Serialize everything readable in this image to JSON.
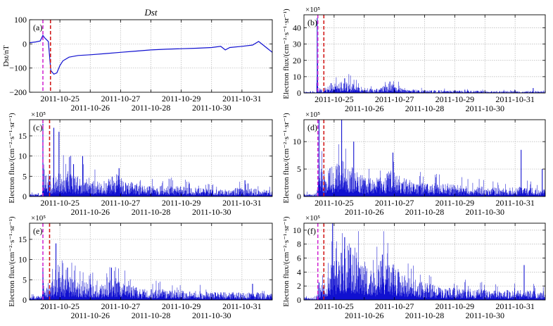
{
  "colors": {
    "series": "#1010d0",
    "marker_magenta": "#d22bd2",
    "marker_red": "#d21a1a",
    "grid": "#b5b5b5",
    "axis": "#000000"
  },
  "chart_data": [
    {
      "id": "a",
      "type": "line",
      "title": "Dst",
      "panel_label": "(a)",
      "xlabel": "",
      "ylabel": "Dst/nT",
      "multiplier": "",
      "xlim": [
        0,
        8
      ],
      "ylim": [
        -200,
        100
      ],
      "yticks": [
        100,
        0,
        -100,
        -200
      ],
      "ytick_labels": [
        "100",
        "0",
        "−100",
        "−200"
      ],
      "grid": true,
      "x_ticks": [
        {
          "x": 1,
          "label": "2011-10-25",
          "row": 0
        },
        {
          "x": 2,
          "label": "2011-10-26",
          "row": 1
        },
        {
          "x": 3,
          "label": "2011-10-27",
          "row": 0
        },
        {
          "x": 4,
          "label": "2011-10-28",
          "row": 1
        },
        {
          "x": 5,
          "label": "2011-10-29",
          "row": 0
        },
        {
          "x": 6,
          "label": "2011-10-30",
          "row": 1
        },
        {
          "x": 7,
          "label": "2011-10-31",
          "row": 0
        }
      ],
      "marker_lines": [
        {
          "x": 0.44,
          "color": "magenta",
          "style": "dashed"
        },
        {
          "x": 0.69,
          "color": "red",
          "style": "dashed"
        }
      ],
      "series": [
        {
          "name": "Dst",
          "x": [
            0,
            0.2,
            0.35,
            0.44,
            0.5,
            0.62,
            0.7,
            0.8,
            0.9,
            1.0,
            1.1,
            1.3,
            1.6,
            2.0,
            2.5,
            3.0,
            3.5,
            4.0,
            4.5,
            5.0,
            5.5,
            6.0,
            6.3,
            6.45,
            6.6,
            7.0,
            7.35,
            7.55,
            7.7,
            8.0
          ],
          "y": [
            5,
            8,
            12,
            35,
            25,
            10,
            -110,
            -125,
            -120,
            -90,
            -70,
            -55,
            -48,
            -45,
            -40,
            -35,
            -30,
            -25,
            -22,
            -20,
            -18,
            -15,
            -10,
            -25,
            -15,
            -10,
            -5,
            10,
            -5,
            -35
          ]
        }
      ]
    },
    {
      "id": "b",
      "type": "bar",
      "panel_label": "(b)",
      "xlabel": "",
      "ylabel": "Electron flux/(cm⁻²·s⁻¹·sr⁻¹)",
      "multiplier": "×10⁵",
      "xlim": [
        0,
        8
      ],
      "ylim": [
        0,
        48
      ],
      "yticks": [
        0,
        10,
        20,
        30,
        40
      ],
      "ytick_labels": [
        "0",
        "10",
        "20",
        "30",
        "40"
      ],
      "grid": true,
      "x_ticks": [
        {
          "x": 1,
          "label": "2011-10-25",
          "row": 0
        },
        {
          "x": 2,
          "label": "2011-10-26",
          "row": 1
        },
        {
          "x": 3,
          "label": "2011-10-27",
          "row": 0
        },
        {
          "x": 4,
          "label": "2011-10-28",
          "row": 1
        },
        {
          "x": 5,
          "label": "2011-10-29",
          "row": 0
        },
        {
          "x": 6,
          "label": "2011-10-30",
          "row": 1
        },
        {
          "x": 7,
          "label": "2011-10-31",
          "row": 0
        }
      ],
      "marker_lines": [
        {
          "x": 0.46,
          "color": "magenta",
          "style": "dashed"
        },
        {
          "x": 0.66,
          "color": "red",
          "style": "dashed"
        }
      ],
      "envelope": {
        "x": [
          0,
          0.42,
          0.44,
          0.48,
          0.6,
          0.75,
          0.9,
          1.1,
          1.3,
          1.5,
          1.7,
          2.0,
          2.4,
          2.7,
          2.9,
          3.1,
          3.3,
          3.6,
          4.0,
          4.5,
          5.0,
          5.5,
          6.0,
          6.5,
          7.0,
          7.5,
          8.0
        ],
        "y": [
          0.6,
          0.6,
          44,
          1.5,
          2,
          3,
          4,
          5,
          6,
          5.5,
          4,
          2.5,
          2,
          4,
          5.5,
          4,
          2.5,
          1.8,
          1.5,
          1.3,
          1.2,
          1.2,
          1.0,
          1.0,
          1.0,
          1.0,
          1.0
        ]
      },
      "spikes": [
        {
          "x": 0.44,
          "y": 46
        },
        {
          "x": 0.9,
          "y": 6
        },
        {
          "x": 1.35,
          "y": 9
        },
        {
          "x": 2.85,
          "y": 7
        },
        {
          "x": 7.6,
          "y": 3
        }
      ]
    },
    {
      "id": "c",
      "type": "bar",
      "panel_label": "(c)",
      "xlabel": "",
      "ylabel": "Electron flux/(cm⁻²·s⁻¹·sr⁻¹)",
      "multiplier": "×10⁵",
      "xlim": [
        0,
        8
      ],
      "ylim": [
        0,
        19
      ],
      "yticks": [
        0,
        5,
        10,
        15
      ],
      "ytick_labels": [
        "0",
        "5",
        "10",
        "15"
      ],
      "grid": true,
      "x_ticks": [
        {
          "x": 1,
          "label": "2011-10-25",
          "row": 0
        },
        {
          "x": 2,
          "label": "2011-10-26",
          "row": 1
        },
        {
          "x": 3,
          "label": "2011-10-27",
          "row": 0
        },
        {
          "x": 4,
          "label": "2011-10-28",
          "row": 1
        },
        {
          "x": 5,
          "label": "2011-10-29",
          "row": 0
        },
        {
          "x": 6,
          "label": "2011-10-30",
          "row": 1
        },
        {
          "x": 7,
          "label": "2011-10-31",
          "row": 0
        }
      ],
      "marker_lines": [
        {
          "x": 0.44,
          "color": "magenta",
          "style": "dashed"
        },
        {
          "x": 0.66,
          "color": "red",
          "style": "dashed"
        }
      ],
      "envelope": {
        "x": [
          0,
          0.42,
          0.44,
          0.5,
          0.6,
          0.75,
          0.9,
          1.1,
          1.3,
          1.5,
          1.7,
          2.0,
          2.4,
          2.7,
          2.9,
          3.1,
          3.3,
          3.6,
          4.0,
          4.5,
          5.0,
          5.5,
          6.0,
          6.5,
          7.0,
          7.5,
          8.0
        ],
        "y": [
          0.5,
          0.5,
          6.5,
          4,
          4.5,
          4.5,
          4.8,
          5,
          5,
          4.5,
          4,
          3.2,
          3,
          4,
          4.5,
          3.5,
          3,
          2.5,
          2.2,
          2.2,
          2.0,
          1.8,
          1.5,
          1.5,
          1.8,
          1.5,
          1.2
        ]
      },
      "spikes": [
        {
          "x": 0.44,
          "y": 18
        },
        {
          "x": 0.8,
          "y": 17
        },
        {
          "x": 0.97,
          "y": 16
        },
        {
          "x": 1.45,
          "y": 8
        },
        {
          "x": 1.75,
          "y": 10
        },
        {
          "x": 2.95,
          "y": 7
        },
        {
          "x": 7.1,
          "y": 4
        }
      ]
    },
    {
      "id": "d",
      "type": "bar",
      "panel_label": "(d)",
      "xlabel": "",
      "ylabel": "Electron flux/(cm⁻²·s⁻¹·sr⁻¹)",
      "multiplier": "×10⁵",
      "xlim": [
        0,
        8
      ],
      "ylim": [
        0,
        14
      ],
      "yticks": [
        0,
        5,
        10
      ],
      "ytick_labels": [
        "0",
        "5",
        "10"
      ],
      "grid": true,
      "x_ticks": [
        {
          "x": 1,
          "label": "2011-10-25",
          "row": 0
        },
        {
          "x": 2,
          "label": "2011-10-26",
          "row": 1
        },
        {
          "x": 3,
          "label": "2011-10-27",
          "row": 0
        },
        {
          "x": 4,
          "label": "2011-10-28",
          "row": 1
        },
        {
          "x": 5,
          "label": "2011-10-29",
          "row": 0
        },
        {
          "x": 6,
          "label": "2011-10-30",
          "row": 1
        },
        {
          "x": 7,
          "label": "2011-10-31",
          "row": 0
        }
      ],
      "marker_lines": [
        {
          "x": 0.46,
          "color": "magenta",
          "style": "dashed"
        },
        {
          "x": 0.66,
          "color": "red",
          "style": "dashed"
        }
      ],
      "envelope": {
        "x": [
          0,
          0.42,
          0.46,
          0.5,
          0.6,
          0.75,
          0.9,
          1.1,
          1.3,
          1.5,
          1.7,
          2.0,
          2.4,
          2.7,
          2.9,
          3.1,
          3.3,
          3.6,
          4.0,
          4.5,
          5.0,
          5.5,
          6.0,
          6.5,
          7.0,
          7.5,
          8.0
        ],
        "y": [
          0.4,
          0.4,
          2,
          5,
          4,
          4,
          4.5,
          5,
          5.2,
          4.6,
          4,
          3,
          2.8,
          3.6,
          4,
          3.2,
          2.8,
          2.4,
          2,
          2,
          1.8,
          1.6,
          1.4,
          1.3,
          1.5,
          1.3,
          1.1
        ]
      },
      "spikes": [
        {
          "x": 0.5,
          "y": 14
        },
        {
          "x": 1.25,
          "y": 14
        },
        {
          "x": 1.65,
          "y": 10
        },
        {
          "x": 2.95,
          "y": 8
        },
        {
          "x": 7.2,
          "y": 8.5
        },
        {
          "x": 7.9,
          "y": 5
        }
      ]
    },
    {
      "id": "e",
      "type": "bar",
      "panel_label": "(e)",
      "xlabel": "",
      "ylabel": "Electron flux/(cm⁻²·s⁻¹·sr⁻¹)",
      "multiplier": "×10⁵",
      "xlim": [
        0,
        8
      ],
      "ylim": [
        0,
        19
      ],
      "yticks": [
        0,
        5,
        10,
        15
      ],
      "ytick_labels": [
        "0",
        "5",
        "10",
        "15"
      ],
      "grid": true,
      "x_ticks": [
        {
          "x": 1,
          "label": "2011-10-25",
          "row": 0
        },
        {
          "x": 2,
          "label": "2011-10-26",
          "row": 1
        },
        {
          "x": 3,
          "label": "2011-10-27",
          "row": 0
        },
        {
          "x": 4,
          "label": "2011-10-28",
          "row": 1
        },
        {
          "x": 5,
          "label": "2011-10-29",
          "row": 0
        },
        {
          "x": 6,
          "label": "2011-10-30",
          "row": 1
        },
        {
          "x": 7,
          "label": "2011-10-31",
          "row": 0
        }
      ],
      "marker_lines": [
        {
          "x": 0.44,
          "color": "magenta",
          "style": "dashed"
        },
        {
          "x": 0.66,
          "color": "red",
          "style": "dashed"
        }
      ],
      "envelope": {
        "x": [
          0,
          0.42,
          0.44,
          0.5,
          0.6,
          0.75,
          0.9,
          1.1,
          1.3,
          1.5,
          1.7,
          2.0,
          2.4,
          2.7,
          2.9,
          3.1,
          3.3,
          3.6,
          4.0,
          4.5,
          5.0,
          5.5,
          6.0,
          6.5,
          7.0,
          7.5,
          8.0
        ],
        "y": [
          0.8,
          0.8,
          8,
          3,
          3.5,
          4,
          4.5,
          5,
          5,
          4.6,
          4,
          3.2,
          3,
          4,
          4.5,
          3.5,
          3,
          2.5,
          2.2,
          2.1,
          2.0,
          1.8,
          1.6,
          1.5,
          1.7,
          1.5,
          1.3
        ]
      },
      "spikes": [
        {
          "x": 0.44,
          "y": 8
        },
        {
          "x": 0.87,
          "y": 14
        },
        {
          "x": 1.25,
          "y": 8
        },
        {
          "x": 2.7,
          "y": 8
        },
        {
          "x": 7.35,
          "y": 4
        }
      ]
    },
    {
      "id": "f",
      "type": "bar",
      "panel_label": "(f)",
      "xlabel": "",
      "ylabel": "Electron flux/(cm⁻²·s⁻¹·sr⁻¹)",
      "multiplier": "×10⁵",
      "xlim": [
        0,
        8
      ],
      "ylim": [
        0,
        11
      ],
      "yticks": [
        0,
        2,
        4,
        6,
        8,
        10
      ],
      "ytick_labels": [
        "0",
        "2",
        "4",
        "6",
        "8",
        "10"
      ],
      "grid": true,
      "x_ticks": [
        {
          "x": 1,
          "label": "2011-10-25",
          "row": 0
        },
        {
          "x": 2,
          "label": "2011-10-26",
          "row": 1
        },
        {
          "x": 3,
          "label": "2011-10-27",
          "row": 0
        },
        {
          "x": 4,
          "label": "2011-10-28",
          "row": 1
        },
        {
          "x": 5,
          "label": "2011-10-29",
          "row": 0
        },
        {
          "x": 6,
          "label": "2011-10-30",
          "row": 1
        },
        {
          "x": 7,
          "label": "2011-10-31",
          "row": 0
        }
      ],
      "marker_lines": [
        {
          "x": 0.46,
          "color": "magenta",
          "style": "dashed"
        },
        {
          "x": 0.66,
          "color": "red",
          "style": "dashed"
        }
      ],
      "envelope": {
        "x": [
          0,
          0.42,
          0.46,
          0.5,
          0.6,
          0.75,
          0.9,
          1.1,
          1.3,
          1.5,
          1.7,
          2.0,
          2.2,
          2.4,
          2.6,
          2.8,
          3.0,
          3.3,
          3.6,
          4.0,
          4.5,
          5.0,
          5.5,
          6.0,
          6.5,
          7.0,
          7.5,
          8.0
        ],
        "y": [
          0.3,
          0.3,
          1,
          1.5,
          2,
          3,
          4,
          5,
          6,
          6.5,
          6,
          4.5,
          3.5,
          3.5,
          5,
          5.5,
          4,
          3,
          2.5,
          2,
          1.6,
          1.4,
          1.3,
          1.2,
          1.1,
          1.2,
          1.1,
          1.0
        ]
      },
      "spikes": [
        {
          "x": 0.5,
          "y": 2.5
        },
        {
          "x": 0.95,
          "y": 11
        },
        {
          "x": 1.35,
          "y": 9
        },
        {
          "x": 1.55,
          "y": 7.5
        },
        {
          "x": 2.6,
          "y": 6.5
        },
        {
          "x": 7.3,
          "y": 5
        }
      ]
    }
  ]
}
